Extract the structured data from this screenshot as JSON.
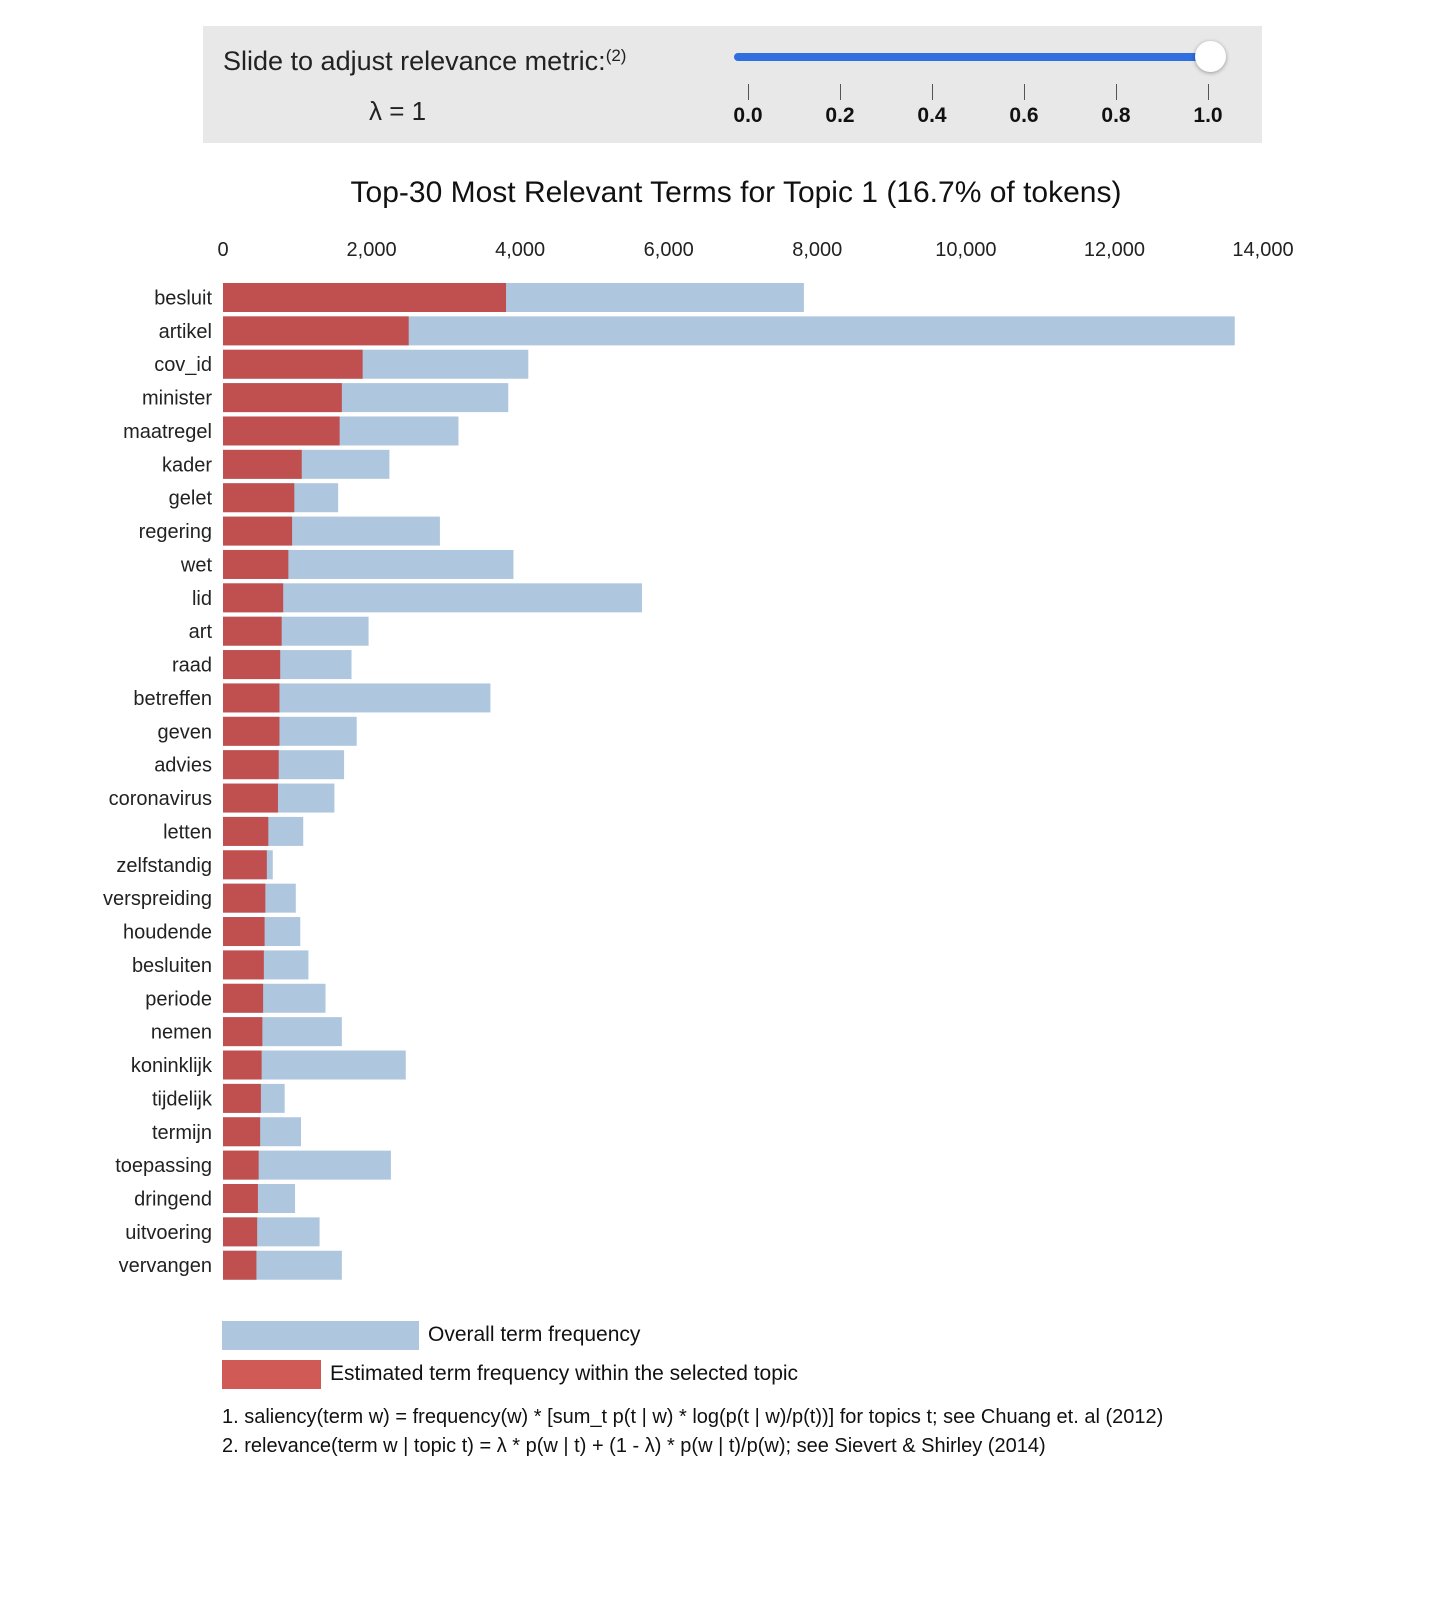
{
  "slider": {
    "label": "Slide to adjust relevance metric:",
    "label_note": "(2)",
    "lambda_text": "λ = 1",
    "value": 1.0,
    "min": 0.0,
    "max": 1.0,
    "ticks": [
      "0.0",
      "0.2",
      "0.4",
      "0.6",
      "0.8",
      "1.0"
    ],
    "accent_color": "#2f6fe0"
  },
  "chart_data": {
    "type": "bar",
    "orientation": "horizontal",
    "title": "Top-30 Most Relevant Terms for Topic 1 (16.7% of tokens)",
    "xlim": [
      0,
      14000
    ],
    "x_ticks": [
      0,
      2000,
      4000,
      6000,
      8000,
      10000,
      12000,
      14000
    ],
    "x_tick_labels": [
      "0",
      "2,000",
      "4,000",
      "6,000",
      "8,000",
      "10,000",
      "12,000",
      "14,000"
    ],
    "x_axis_position": "top",
    "grid": false,
    "categories": [
      "besluit",
      "artikel",
      "cov_id",
      "minister",
      "maatregel",
      "kader",
      "gelet",
      "regering",
      "wet",
      "lid",
      "art",
      "raad",
      "betreffen",
      "geven",
      "advies",
      "coronavirus",
      "letten",
      "zelfstandig",
      "verspreiding",
      "houdende",
      "besluiten",
      "periode",
      "nemen",
      "koninklijk",
      "tijdelijk",
      "termijn",
      "toepassing",
      "dringend",
      "uitvoering",
      "vervangen"
    ],
    "series": [
      {
        "name": "Overall term frequency",
        "color": "#aec7df",
        "values": [
          7820,
          13620,
          4110,
          3840,
          3170,
          2240,
          1550,
          2920,
          3910,
          5640,
          1960,
          1730,
          3600,
          1800,
          1630,
          1500,
          1080,
          670,
          980,
          1040,
          1150,
          1380,
          1600,
          2460,
          830,
          1050,
          2260,
          970,
          1300,
          1600
        ]
      },
      {
        "name": "Estimated term frequency within the selected topic",
        "color": "#c05050",
        "values": [
          3810,
          2500,
          1880,
          1600,
          1570,
          1060,
          960,
          930,
          880,
          810,
          790,
          770,
          760,
          760,
          750,
          740,
          610,
          590,
          570,
          560,
          550,
          540,
          530,
          520,
          510,
          500,
          480,
          470,
          460,
          450
        ]
      }
    ],
    "legend": {
      "placement": "bottom-left",
      "items": [
        {
          "label": "Overall term frequency",
          "color": "#aec7df"
        },
        {
          "label": "Estimated term frequency within the selected topic",
          "color": "#d05a55"
        }
      ]
    }
  },
  "footnotes": [
    "1. saliency(term w) = frequency(w) * [sum_t p(t | w) * log(p(t | w)/p(t))] for topics t; see Chuang et. al (2012)",
    "2. relevance(term w | topic t) = λ * p(w | t) + (1 - λ) * p(w | t)/p(w); see Sievert & Shirley (2014)"
  ]
}
